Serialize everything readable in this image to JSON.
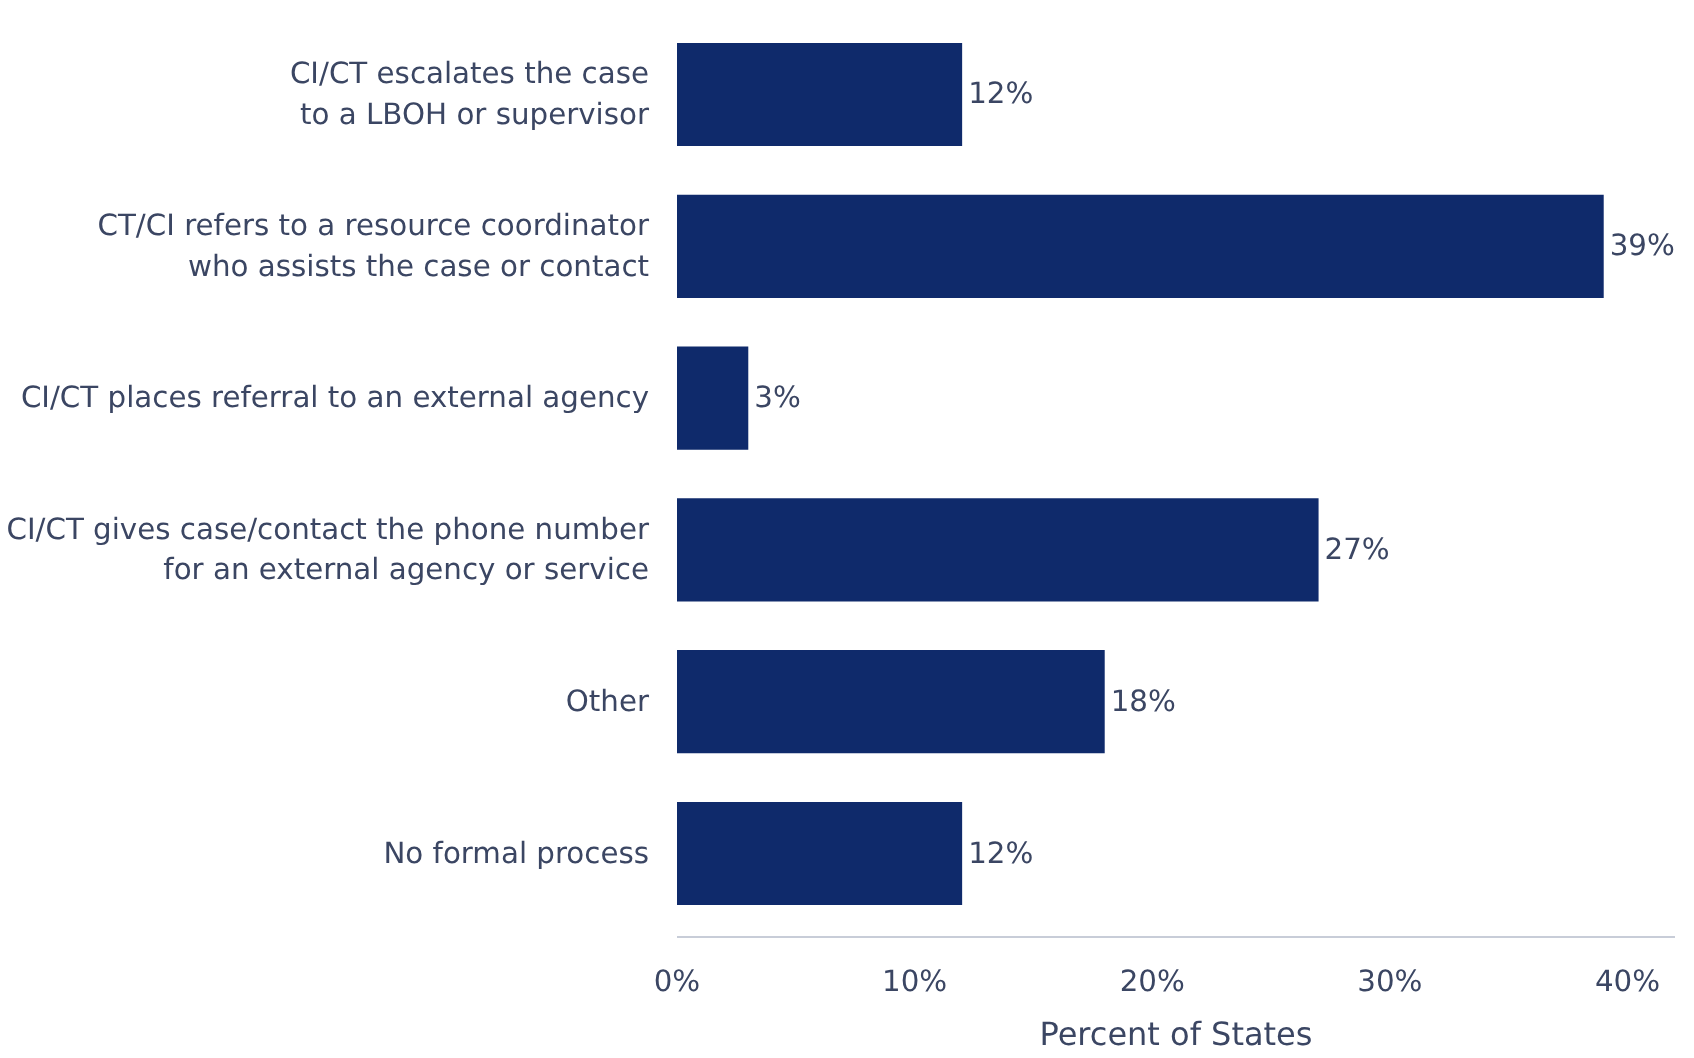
{
  "chart_data": {
    "type": "bar",
    "orientation": "horizontal",
    "xlabel": "Percent of States",
    "categories": [
      "CI/CT escalates the case\nto a LBOH or supervisor",
      "CT/CI refers to a resource coordinator\nwho assists the case or contact",
      "CI/CT places referral to an external agency",
      "CI/CT gives case/contact the phone number\nfor an external agency or service",
      "Other",
      "No formal process"
    ],
    "values": [
      12,
      39,
      3,
      27,
      18,
      12
    ],
    "value_labels": [
      "12%",
      "39%",
      "3%",
      "27%",
      "18%",
      "12%"
    ],
    "color": "#0f2a6b",
    "xlim": [
      0,
      42
    ],
    "xticks": [
      {
        "value": 0,
        "label": "0%"
      },
      {
        "value": 10,
        "label": "10%"
      },
      {
        "value": 20,
        "label": "20%"
      },
      {
        "value": 30,
        "label": "30%"
      },
      {
        "value": 40,
        "label": "40%"
      }
    ],
    "grid": false
  }
}
